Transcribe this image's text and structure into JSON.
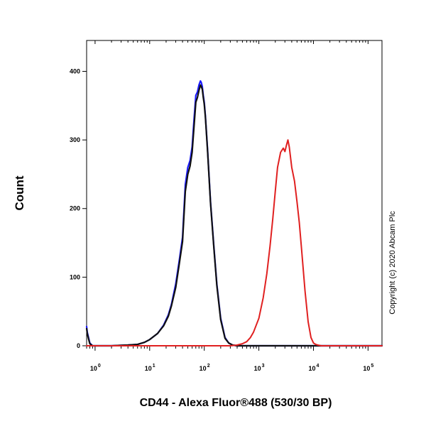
{
  "chart_data": {
    "type": "line",
    "xlabel": "CD44 - Alexa Fluor®488 (530/30 BP)",
    "ylabel": "Count",
    "x_scale": "log",
    "xlim": [
      0.7,
      180000
    ],
    "ylim": [
      0,
      445
    ],
    "y_ticks": [
      0,
      100,
      200,
      300,
      400
    ],
    "x_ticks": [
      {
        "value": 1,
        "base": "10",
        "exp": "0"
      },
      {
        "value": 10,
        "base": "10",
        "exp": "1"
      },
      {
        "value": 100,
        "base": "10",
        "exp": "2"
      },
      {
        "value": 1000,
        "base": "10",
        "exp": "3"
      },
      {
        "value": 10000,
        "base": "10",
        "exp": "4"
      },
      {
        "value": 100000,
        "base": "10",
        "exp": "5"
      }
    ],
    "grid": false,
    "legend": "none",
    "annotation": "Copyright (c) 2020 Abcam Plc",
    "series": [
      {
        "color": "#1a1aff",
        "x": [
          0.7,
          0.72,
          0.76,
          0.8,
          0.9,
          1,
          2,
          4,
          6,
          8,
          10,
          14,
          18,
          22,
          25,
          30,
          35,
          40,
          45,
          50,
          55,
          60,
          65,
          70,
          75,
          80,
          85,
          88,
          92,
          96,
          100,
          105,
          115,
          130,
          150,
          170,
          200,
          240,
          280,
          330,
          400,
          500,
          180000
        ],
        "y": [
          28,
          20,
          12,
          4,
          0,
          0,
          0,
          1,
          2,
          5,
          9,
          18,
          30,
          45,
          60,
          90,
          125,
          158,
          235,
          260,
          270,
          290,
          330,
          365,
          370,
          380,
          386,
          384,
          378,
          365,
          355,
          335,
          285,
          210,
          145,
          90,
          40,
          12,
          4,
          1,
          0,
          0,
          0
        ]
      },
      {
        "color": "#111111",
        "x": [
          0.7,
          0.72,
          0.76,
          0.8,
          0.9,
          1,
          2,
          4,
          6,
          8,
          10,
          14,
          18,
          22,
          25,
          30,
          35,
          40,
          45,
          50,
          55,
          60,
          65,
          70,
          75,
          80,
          85,
          88,
          92,
          96,
          100,
          105,
          115,
          130,
          150,
          170,
          200,
          240,
          280,
          330,
          400,
          500,
          180000
        ],
        "y": [
          25,
          18,
          10,
          3,
          0,
          0,
          0,
          1,
          2,
          5,
          9,
          18,
          29,
          43,
          58,
          85,
          120,
          152,
          225,
          250,
          262,
          282,
          320,
          355,
          362,
          372,
          380,
          378,
          374,
          362,
          352,
          333,
          283,
          208,
          143,
          88,
          38,
          11,
          4,
          1,
          0,
          0,
          0
        ]
      },
      {
        "color": "#e02020",
        "x": [
          0.7,
          300,
          400,
          500,
          600,
          700,
          800,
          1000,
          1200,
          1400,
          1600,
          1800,
          2000,
          2200,
          2500,
          2800,
          3000,
          3200,
          3400,
          3600,
          4000,
          4500,
          5000,
          5500,
          6000,
          7000,
          8000,
          9000,
          10000,
          11000,
          12000,
          14000,
          180000
        ],
        "y": [
          0,
          0,
          1,
          3,
          6,
          12,
          20,
          40,
          70,
          105,
          145,
          185,
          225,
          260,
          282,
          288,
          283,
          292,
          300,
          290,
          260,
          240,
          210,
          180,
          145,
          80,
          35,
          12,
          4,
          2,
          1,
          0,
          0
        ]
      }
    ]
  }
}
